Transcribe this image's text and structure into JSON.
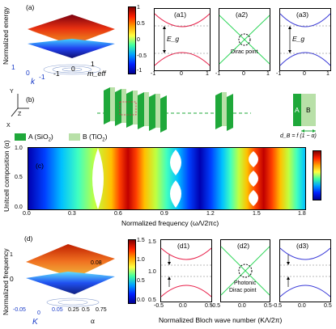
{
  "figure": {
    "panel_a": {
      "label": "(a)",
      "zlabel": "Normalized energy",
      "xlabel": "k",
      "ylabel": "m_eff",
      "xticks": [
        "1",
        "0",
        "-1"
      ],
      "yticks": [
        "-1",
        "0",
        "1"
      ],
      "colorbar_ticks": [
        "1",
        "0.5",
        "0",
        "-0.5",
        "-1"
      ]
    },
    "panel_a1": {
      "label": "(a1)",
      "gap_label": "E_g",
      "xticks": [
        "-1",
        "0",
        "1"
      ]
    },
    "panel_a2": {
      "label": "(a2)",
      "annotation": "Dirac point",
      "xticks": [
        "-1",
        "0",
        "1"
      ]
    },
    "panel_a3": {
      "label": "(a3)",
      "gap_label": "E_g",
      "xticks": [
        "-1",
        "0",
        "1"
      ]
    },
    "panel_b": {
      "label": "(b)",
      "axes": [
        "Y",
        "Z",
        "X"
      ],
      "legend_a": "A (SiO",
      "legend_a_sub": "2",
      "legend_a_close": ")",
      "legend_b": "B (TiO",
      "legend_b_sub": "2",
      "legend_b_close": ")",
      "cell_a": "A",
      "cell_b": "B",
      "formula": "d_B = f (1 − α)"
    },
    "panel_c": {
      "label": "(c)",
      "ylabel": "Unitcell composition (α)",
      "xlabel": "Normalized frequency (ωΛ/2πc)",
      "xticks": [
        "0.0",
        "0.3",
        "0.6",
        "0.9",
        "1.2",
        "1.5",
        "1.8"
      ],
      "yticks": [
        "1.0",
        "0.5",
        "0.0"
      ]
    },
    "panel_d": {
      "label": "(d)",
      "zlabel": "Normalized frequency",
      "xlabel": "K",
      "ylabel": "α",
      "xticks": [
        "-0.05",
        "0",
        "0.05"
      ],
      "yticks": [
        "0.25",
        "0.5",
        "0.75"
      ],
      "zticks": [
        "1",
        "0.08"
      ],
      "colorbar_ticks": [
        "1.5",
        "1.0",
        "0.5",
        "0.0"
      ]
    },
    "panel_d1": {
      "label": "(d1)",
      "xticks": [
        "-0.5",
        "0.0",
        "0.5"
      ],
      "yticks": [
        "1.5",
        "1.0",
        "0.5"
      ]
    },
    "panel_d2": {
      "label": "(d2)",
      "annotation1": "Photonic",
      "annotation2": "Dirac point",
      "xticks": [
        "-0.5",
        "0.0",
        "0.5"
      ]
    },
    "panel_d3": {
      "label": "(d3)",
      "xticks": [
        "-0.5",
        "0.0",
        "0.5"
      ]
    },
    "bottom_xlabel": "Normalized Bloch wave number (KΛ/2π)"
  },
  "colors": {
    "band_red": "#e8204a",
    "band_green": "#2fd65a",
    "band_blue": "#3a3ad8",
    "label_blue": "#1a3cc8",
    "sio2": "#1fa83a",
    "tio2": "#b8e0a8"
  }
}
